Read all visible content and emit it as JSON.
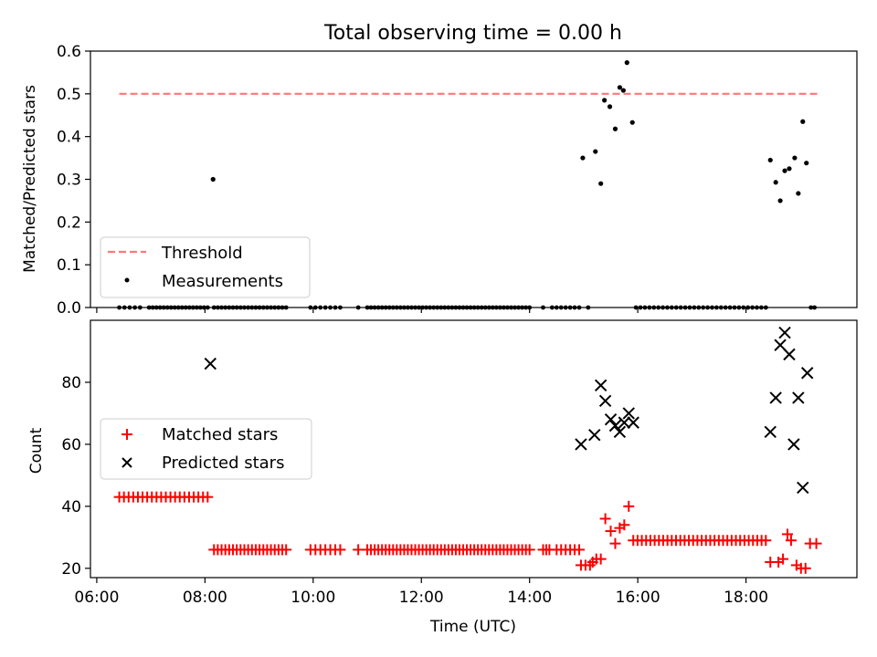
{
  "chart_data": [
    {
      "type": "scatter",
      "title": "Total observing time = 0.00 h",
      "xlabel": "",
      "ylabel": "Matched/Predicted stars",
      "ylim": [
        0,
        0.6
      ],
      "yticks": [
        0,
        0.1,
        0.2,
        0.3,
        0.4,
        0.5,
        0.6
      ],
      "ytick_labels": [
        "0.0",
        "0.1",
        "0.2",
        "0.3",
        "0.4",
        "0.5",
        "0.6"
      ],
      "xlim": [
        "05:53",
        "20:03"
      ],
      "legend": {
        "placement": "lower-left",
        "entries": [
          "Threshold",
          "Measurements"
        ]
      },
      "threshold": {
        "name": "Threshold",
        "value": 0.5,
        "x_start": "06:25",
        "x_end": "19:20",
        "color": "#ff7777",
        "style": "dashed"
      },
      "series": [
        {
          "name": "Measurements",
          "color": "#000000",
          "marker": "dot",
          "points": [
            [
              "08:09",
              0.3
            ],
            [
              "14:59",
              0.35
            ],
            [
              "15:13",
              0.365
            ],
            [
              "15:19",
              0.29
            ],
            [
              "15:23",
              0.485
            ],
            [
              "15:29",
              0.47
            ],
            [
              "15:35",
              0.418
            ],
            [
              "15:40",
              0.515
            ],
            [
              "15:44",
              0.508
            ],
            [
              "15:48",
              0.573
            ],
            [
              "15:54",
              0.433
            ],
            [
              "18:27",
              0.345
            ],
            [
              "18:33",
              0.293
            ],
            [
              "18:38",
              0.25
            ],
            [
              "18:43",
              0.32
            ],
            [
              "18:48",
              0.325
            ],
            [
              "18:54",
              0.35
            ],
            [
              "18:58",
              0.267
            ],
            [
              "19:03",
              0.435
            ],
            [
              "19:07",
              0.338
            ]
          ],
          "zero_ranges": [
            [
              "06:25",
              "06:48",
              5
            ],
            [
              "06:58",
              "08:03",
              17
            ],
            [
              "08:10",
              "09:30",
              20
            ],
            [
              "09:57",
              "10:30",
              7
            ],
            [
              "10:50",
              "10:50",
              1
            ],
            [
              "11:00",
              "14:00",
              45
            ],
            [
              "14:15",
              "14:15",
              1
            ],
            [
              "14:25",
              "14:55",
              7
            ],
            [
              "15:05",
              "15:05",
              1
            ],
            [
              "15:58",
              "18:22",
              30
            ],
            [
              "19:12",
              "19:16",
              2
            ]
          ]
        }
      ]
    },
    {
      "type": "scatter",
      "title": "",
      "xlabel": "Time (UTC)",
      "ylabel": "Count",
      "ylim": [
        17,
        100
      ],
      "yticks": [
        20,
        40,
        60,
        80
      ],
      "ytick_labels": [
        "20",
        "40",
        "60",
        "80"
      ],
      "xlim": [
        "05:53",
        "20:03"
      ],
      "xticks": [
        "06:00",
        "08:00",
        "10:00",
        "12:00",
        "14:00",
        "16:00",
        "18:00"
      ],
      "legend": {
        "placement": "center-left",
        "entries": [
          "Matched stars",
          "Predicted stars"
        ]
      },
      "series": [
        {
          "name": "Matched stars",
          "color": "#ff0000",
          "marker": "plus",
          "points": [
            [
              "14:57",
              21
            ],
            [
              "15:02",
              21
            ],
            [
              "15:07",
              21
            ],
            [
              "15:10",
              22
            ],
            [
              "15:14",
              23
            ],
            [
              "15:19",
              23
            ],
            [
              "15:24",
              36
            ],
            [
              "15:30",
              32
            ],
            [
              "15:35",
              28
            ],
            [
              "15:40",
              33
            ],
            [
              "15:45",
              34
            ],
            [
              "15:50",
              40
            ],
            [
              "18:27",
              22
            ],
            [
              "18:36",
              22
            ],
            [
              "18:41",
              23
            ],
            [
              "18:46",
              31
            ],
            [
              "18:50",
              29
            ],
            [
              "18:56",
              21
            ],
            [
              "19:01",
              20
            ],
            [
              "19:06",
              20
            ],
            [
              "19:11",
              28
            ],
            [
              "19:18",
              28
            ]
          ],
          "ranges": [
            [
              "06:25",
              "08:03",
              43,
              20
            ],
            [
              "08:10",
              "09:30",
              26,
              20
            ],
            [
              "09:57",
              "10:30",
              26,
              7
            ],
            [
              "10:50",
              "10:50",
              26,
              1
            ],
            [
              "11:00",
              "14:00",
              26,
              45
            ],
            [
              "14:15",
              "14:22",
              26,
              3
            ],
            [
              "14:30",
              "14:55",
              26,
              6
            ],
            [
              "15:55",
              "18:22",
              29,
              32
            ]
          ]
        },
        {
          "name": "Predicted stars",
          "color": "#000000",
          "marker": "x",
          "points": [
            [
              "08:06",
              86
            ],
            [
              "14:57",
              60
            ],
            [
              "15:12",
              63
            ],
            [
              "15:19",
              79
            ],
            [
              "15:24",
              74
            ],
            [
              "15:30",
              68
            ],
            [
              "15:35",
              66
            ],
            [
              "15:40",
              64
            ],
            [
              "15:45",
              67
            ],
            [
              "15:50",
              70
            ],
            [
              "15:55",
              67
            ],
            [
              "18:27",
              64
            ],
            [
              "18:33",
              75
            ],
            [
              "18:38",
              92
            ],
            [
              "18:43",
              96
            ],
            [
              "18:48",
              89
            ],
            [
              "18:53",
              60
            ],
            [
              "18:58",
              75
            ],
            [
              "19:03",
              46
            ],
            [
              "19:08",
              83
            ]
          ]
        }
      ]
    }
  ]
}
